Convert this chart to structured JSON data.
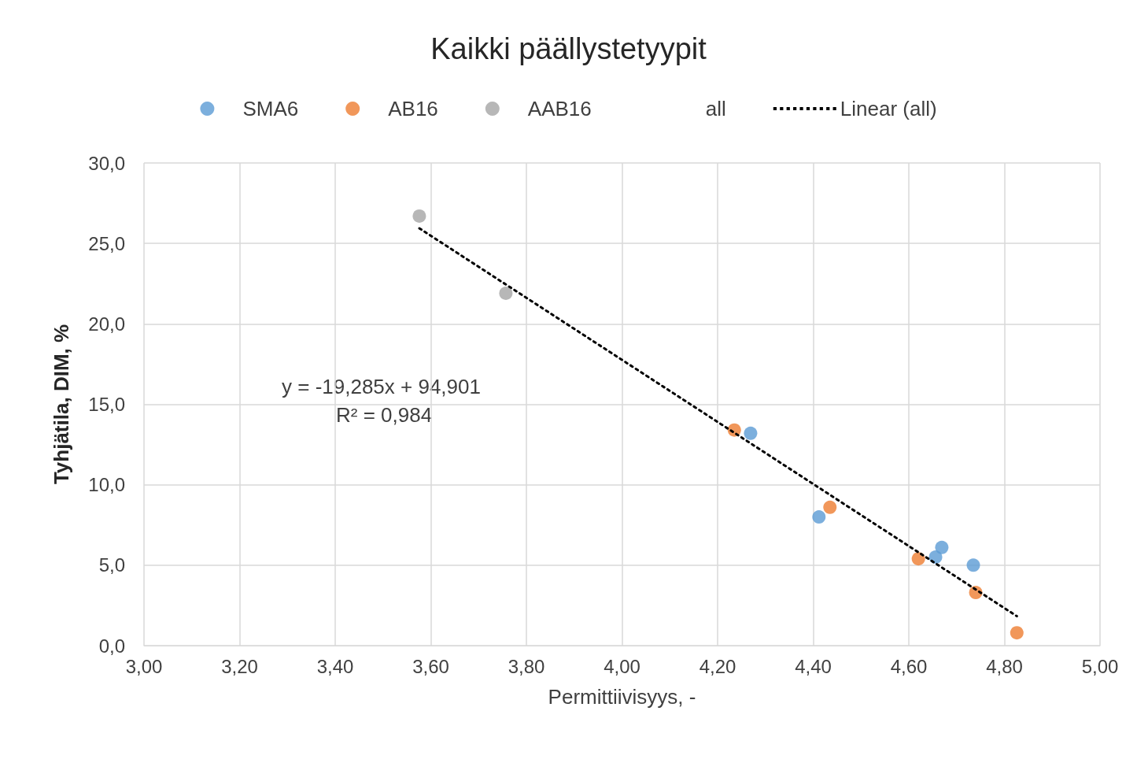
{
  "chart_data": {
    "type": "scatter",
    "title": "Kaikki päällystetyypit",
    "xlabel": "Permittiivisyys, -",
    "ylabel": "Tyhjätila, DIM, %",
    "xlim": [
      3,
      5
    ],
    "xticks": [
      {
        "value": 3,
        "label": "3,00"
      },
      {
        "value": 3.2,
        "label": "3,20"
      },
      {
        "value": 3.4,
        "label": "3,40"
      },
      {
        "value": 3.6,
        "label": "3,60"
      },
      {
        "value": 3.8,
        "label": "3,80"
      },
      {
        "value": 4,
        "label": "4,00"
      },
      {
        "value": 4.2,
        "label": "4,20"
      },
      {
        "value": 4.4,
        "label": "4,40"
      },
      {
        "value": 4.6,
        "label": "4,60"
      },
      {
        "value": 4.8,
        "label": "4,80"
      },
      {
        "value": 5,
        "label": "5,00"
      }
    ],
    "ylim": [
      0,
      30
    ],
    "yticks": [
      {
        "value": 0,
        "label": "0,0"
      },
      {
        "value": 5,
        "label": "5,0"
      },
      {
        "value": 10,
        "label": "10,0"
      },
      {
        "value": 15,
        "label": "15,0"
      },
      {
        "value": 20,
        "label": "20,0"
      },
      {
        "value": 25,
        "label": "25,0"
      },
      {
        "value": 30,
        "label": "30,0"
      }
    ],
    "grid": true,
    "legend": "top",
    "marker": "circle",
    "annotations": [
      "y = -19,285x + 94,901",
      "R² = 0,984"
    ],
    "series": [
      {
        "name": "SMA6",
        "color": "#5b9bd5",
        "x": [
          4.269,
          4.412,
          4.656,
          4.669,
          4.735
        ],
        "values": [
          13.2,
          8.0,
          5.5,
          6.1,
          5.0
        ]
      },
      {
        "name": "AB16",
        "color": "#ed7d31",
        "x": [
          4.235,
          4.435,
          4.62,
          4.74,
          4.826
        ],
        "values": [
          13.4,
          8.6,
          5.4,
          3.3,
          0.8
        ]
      },
      {
        "name": "AAB16",
        "color": "#a5a5a5",
        "x": [
          3.576,
          3.757
        ],
        "values": [
          26.7,
          21.9
        ]
      },
      {
        "name": "all",
        "marker": "none",
        "values": [
          null
        ]
      },
      {
        "name": "Linear (all)",
        "type": "line",
        "color": "#000000",
        "marker": "none",
        "line_style": "dotted",
        "x": [
          3.576,
          4.826
        ],
        "values": [
          25.94,
          1.83
        ]
      }
    ]
  }
}
